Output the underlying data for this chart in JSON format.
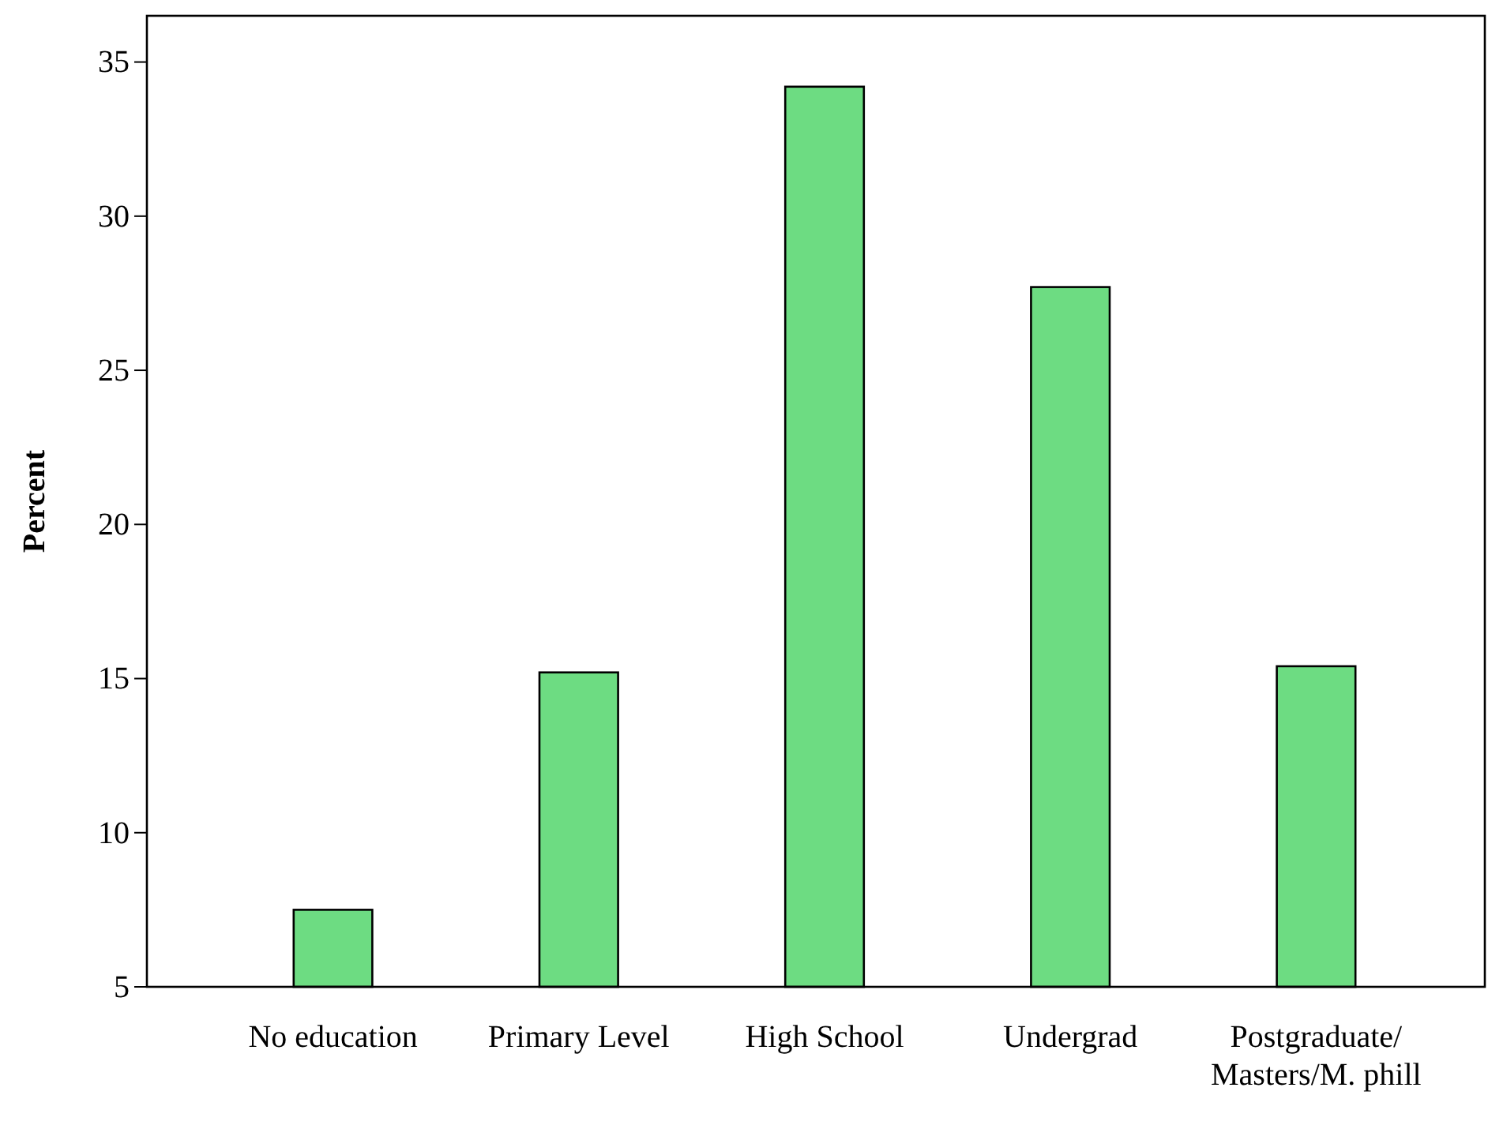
{
  "chart_data": {
    "type": "bar",
    "ylabel": "Percent",
    "categories": [
      "No education",
      "Primary Level",
      "High School",
      "Undergrad",
      "Postgraduate/Masters/M. phill"
    ],
    "values": [
      7.5,
      15.2,
      34.2,
      27.7,
      15.4
    ],
    "color": "#6ddc82",
    "ylim": [
      5,
      36.5
    ],
    "yticks": [
      5,
      10,
      15,
      20,
      25,
      30,
      35
    ],
    "grid": false
  }
}
